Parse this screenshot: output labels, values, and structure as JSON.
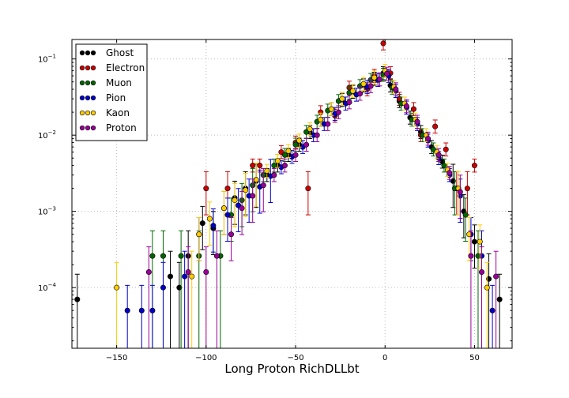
{
  "chart_data": {
    "type": "scatter",
    "title": "",
    "xlabel": "Long Proton RichDLLbt",
    "ylabel": "",
    "xlim": [
      -175,
      71
    ],
    "ylim": [
      1.6e-05,
      0.18
    ],
    "yscale": "log",
    "grid": true,
    "legend_position": "top-left",
    "x_ticks": [
      {
        "value": -150,
        "label": "−150"
      },
      {
        "value": -100,
        "label": "−100"
      },
      {
        "value": -50,
        "label": "−50"
      },
      {
        "value": 0,
        "label": "0"
      },
      {
        "value": 50,
        "label": "50"
      }
    ],
    "y_ticks": [
      {
        "value": 0.1,
        "base": "10",
        "exp": "−1"
      },
      {
        "value": 0.01,
        "base": "10",
        "exp": "−2"
      },
      {
        "value": 0.001,
        "base": "10",
        "exp": "−3"
      },
      {
        "value": 0.0001,
        "base": "10",
        "exp": "−4"
      }
    ],
    "series": [
      {
        "name": "Ghost",
        "color": "#000000",
        "points": [
          [
            -172,
            7e-05
          ],
          [
            -120,
            0.00014
          ],
          [
            -115,
            0.0001
          ],
          [
            -110,
            0.00026
          ],
          [
            -102,
            0.0007
          ],
          [
            -96,
            0.0006
          ],
          [
            -90,
            0.0011
          ],
          [
            -84,
            0.0015
          ],
          [
            -78,
            0.002
          ],
          [
            -72,
            0.0025
          ],
          [
            -66,
            0.003
          ],
          [
            -60,
            0.004
          ],
          [
            -54,
            0.0055
          ],
          [
            -48,
            0.0075
          ],
          [
            -42,
            0.011
          ],
          [
            -36,
            0.016
          ],
          [
            -30,
            0.022
          ],
          [
            -24,
            0.029
          ],
          [
            -18,
            0.037
          ],
          [
            -12,
            0.045
          ],
          [
            -6,
            0.055
          ],
          [
            -1,
            0.065
          ],
          [
            3,
            0.045
          ],
          [
            8,
            0.028
          ],
          [
            14,
            0.017
          ],
          [
            20,
            0.011
          ],
          [
            26,
            0.007
          ],
          [
            32,
            0.0045
          ],
          [
            38,
            0.0025
          ],
          [
            44,
            0.001
          ],
          [
            50,
            0.0004
          ],
          [
            58,
            0.00013
          ],
          [
            64,
            7e-05
          ]
        ]
      },
      {
        "name": "Electron",
        "color": "#cc0000",
        "points": [
          [
            -100,
            0.002
          ],
          [
            -88,
            0.002
          ],
          [
            -74,
            0.004
          ],
          [
            -70,
            0.004
          ],
          [
            -58,
            0.006
          ],
          [
            -50,
            0.008
          ],
          [
            -43,
            0.002
          ],
          [
            -36,
            0.02
          ],
          [
            -28,
            0.018
          ],
          [
            -20,
            0.042
          ],
          [
            -10,
            0.04
          ],
          [
            -6,
            0.06
          ],
          [
            -1,
            0.16
          ],
          [
            3,
            0.065
          ],
          [
            8,
            0.03
          ],
          [
            16,
            0.022
          ],
          [
            20,
            0.01
          ],
          [
            28,
            0.013
          ],
          [
            34,
            0.0065
          ],
          [
            40,
            0.002
          ],
          [
            46,
            0.002
          ],
          [
            50,
            0.004
          ]
        ]
      },
      {
        "name": "Muon",
        "color": "#006600",
        "points": [
          [
            -130,
            0.00026
          ],
          [
            -124,
            0.00026
          ],
          [
            -114,
            0.00026
          ],
          [
            -104,
            0.00026
          ],
          [
            -92,
            0.00026
          ],
          [
            -86,
            0.0009
          ],
          [
            -80,
            0.0014
          ],
          [
            -74,
            0.0022
          ],
          [
            -68,
            0.003
          ],
          [
            -62,
            0.004
          ],
          [
            -56,
            0.0055
          ],
          [
            -50,
            0.0075
          ],
          [
            -44,
            0.011
          ],
          [
            -38,
            0.015
          ],
          [
            -32,
            0.021
          ],
          [
            -26,
            0.028
          ],
          [
            -20,
            0.036
          ],
          [
            -14,
            0.044
          ],
          [
            -8,
            0.053
          ],
          [
            -1,
            0.062
          ],
          [
            4,
            0.042
          ],
          [
            9,
            0.026
          ],
          [
            15,
            0.016
          ],
          [
            21,
            0.01
          ],
          [
            27,
            0.0065
          ],
          [
            33,
            0.004
          ],
          [
            39,
            0.002
          ],
          [
            45,
            0.0009
          ],
          [
            52,
            0.00026
          ]
        ]
      },
      {
        "name": "Pion",
        "color": "#0000cc",
        "points": [
          [
            -144,
            5e-05
          ],
          [
            -136,
            5e-05
          ],
          [
            -130,
            5e-05
          ],
          [
            -124,
            0.0001
          ],
          [
            -112,
            0.00014
          ],
          [
            -104,
            0.0005
          ],
          [
            -96,
            0.00065
          ],
          [
            -88,
            0.0009
          ],
          [
            -82,
            0.0012
          ],
          [
            -76,
            0.0016
          ],
          [
            -70,
            0.0021
          ],
          [
            -64,
            0.0029
          ],
          [
            -58,
            0.0038
          ],
          [
            -52,
            0.0052
          ],
          [
            -46,
            0.007
          ],
          [
            -40,
            0.01
          ],
          [
            -34,
            0.014
          ],
          [
            -28,
            0.019
          ],
          [
            -22,
            0.026
          ],
          [
            -16,
            0.034
          ],
          [
            -10,
            0.043
          ],
          [
            -4,
            0.053
          ],
          [
            2,
            0.06
          ],
          [
            6,
            0.038
          ],
          [
            12,
            0.023
          ],
          [
            18,
            0.014
          ],
          [
            24,
            0.0085
          ],
          [
            30,
            0.005
          ],
          [
            36,
            0.003
          ],
          [
            42,
            0.0016
          ],
          [
            48,
            0.0005
          ],
          [
            54,
            0.00026
          ],
          [
            60,
            5e-05
          ]
        ]
      },
      {
        "name": "Kaon",
        "color": "#ffcc00",
        "points": [
          [
            -150,
            0.0001
          ],
          [
            -108,
            0.00014
          ],
          [
            -104,
            0.0005
          ],
          [
            -98,
            0.0008
          ],
          [
            -90,
            0.0011
          ],
          [
            -84,
            0.0014
          ],
          [
            -78,
            0.0019
          ],
          [
            -72,
            0.0026
          ],
          [
            -66,
            0.0034
          ],
          [
            -60,
            0.0046
          ],
          [
            -54,
            0.0062
          ],
          [
            -48,
            0.0085
          ],
          [
            -42,
            0.012
          ],
          [
            -36,
            0.016
          ],
          [
            -30,
            0.022
          ],
          [
            -24,
            0.03
          ],
          [
            -18,
            0.038
          ],
          [
            -12,
            0.047
          ],
          [
            -6,
            0.057
          ],
          [
            0,
            0.07
          ],
          [
            5,
            0.043
          ],
          [
            11,
            0.026
          ],
          [
            17,
            0.016
          ],
          [
            23,
            0.01
          ],
          [
            29,
            0.006
          ],
          [
            35,
            0.0035
          ],
          [
            41,
            0.002
          ],
          [
            47,
            0.0005
          ],
          [
            53,
            0.0004
          ],
          [
            57,
            0.0001
          ]
        ]
      },
      {
        "name": "Proton",
        "color": "#990099",
        "points": [
          [
            -132,
            0.00016
          ],
          [
            -110,
            0.00016
          ],
          [
            -100,
            0.00016
          ],
          [
            -94,
            0.00026
          ],
          [
            -86,
            0.0005
          ],
          [
            -80,
            0.0011
          ],
          [
            -74,
            0.0016
          ],
          [
            -68,
            0.0022
          ],
          [
            -62,
            0.003
          ],
          [
            -56,
            0.004
          ],
          [
            -50,
            0.0055
          ],
          [
            -44,
            0.0075
          ],
          [
            -38,
            0.01
          ],
          [
            -32,
            0.014
          ],
          [
            -26,
            0.02
          ],
          [
            -20,
            0.027
          ],
          [
            -14,
            0.035
          ],
          [
            -8,
            0.044
          ],
          [
            -3,
            0.054
          ],
          [
            1,
            0.064
          ],
          [
            6,
            0.04
          ],
          [
            12,
            0.024
          ],
          [
            18,
            0.015
          ],
          [
            24,
            0.009
          ],
          [
            30,
            0.0055
          ],
          [
            36,
            0.0032
          ],
          [
            42,
            0.0018
          ],
          [
            48,
            0.00026
          ],
          [
            54,
            0.00016
          ],
          [
            62,
            0.00014
          ]
        ]
      }
    ]
  }
}
